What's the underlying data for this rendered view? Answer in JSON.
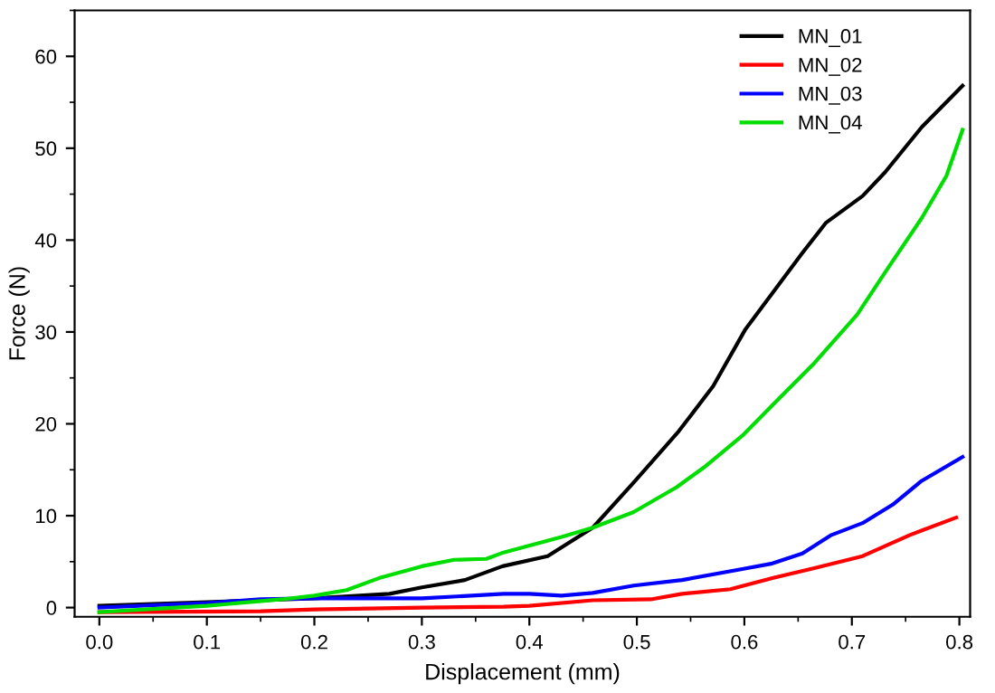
{
  "chart_data": {
    "type": "line",
    "xlabel": "Displacement (mm)",
    "ylabel": "Force (N)",
    "xlim": [
      -0.023,
      0.81
    ],
    "ylim": [
      -1,
      65
    ],
    "xticks": [
      {
        "value": 0.0,
        "label": "0.0"
      },
      0.1,
      0.2,
      0.3,
      0.4,
      0.5,
      0.6,
      0.7,
      0.8
    ],
    "yticks": [
      0,
      10,
      20,
      30,
      40,
      50,
      60
    ],
    "grid": false,
    "legend": "top right",
    "marker": "none",
    "line_style": "solid",
    "series": [
      {
        "name": "MN_01",
        "color": "#000000",
        "x": [
          0.0,
          0.1,
          0.15,
          0.2,
          0.27,
          0.3,
          0.34,
          0.375,
          0.417,
          0.459,
          0.497,
          0.539,
          0.571,
          0.601,
          0.654,
          0.676,
          0.71,
          0.731,
          0.765,
          0.803
        ],
        "values": [
          0.2,
          0.6,
          0.8,
          1.0,
          1.5,
          2.2,
          3.0,
          4.5,
          5.6,
          8.7,
          13.6,
          19.2,
          24.1,
          30.3,
          38.6,
          41.9,
          44.8,
          47.4,
          52.3,
          56.8
        ]
      },
      {
        "name": "MN_02",
        "color": "#ff0000",
        "x": [
          0.0,
          0.15,
          0.2,
          0.3,
          0.376,
          0.4,
          0.459,
          0.513,
          0.542,
          0.587,
          0.626,
          0.665,
          0.71,
          0.754,
          0.797
        ],
        "values": [
          -0.5,
          -0.4,
          -0.2,
          0.0,
          0.1,
          0.2,
          0.8,
          0.9,
          1.5,
          2.0,
          3.2,
          4.3,
          5.6,
          7.9,
          9.8
        ]
      },
      {
        "name": "MN_03",
        "color": "#0000ff",
        "x": [
          0.0,
          0.1,
          0.15,
          0.2,
          0.3,
          0.376,
          0.4,
          0.43,
          0.459,
          0.497,
          0.542,
          0.598,
          0.626,
          0.654,
          0.681,
          0.71,
          0.738,
          0.765,
          0.803
        ],
        "values": [
          0.0,
          0.5,
          0.9,
          1.0,
          1.0,
          1.5,
          1.5,
          1.3,
          1.6,
          2.4,
          3.0,
          4.2,
          4.8,
          5.9,
          7.9,
          9.2,
          11.2,
          13.8,
          16.4
        ]
      },
      {
        "name": "MN_04",
        "color": "#00dd00",
        "x": [
          0.0,
          0.1,
          0.17,
          0.2,
          0.23,
          0.26,
          0.3,
          0.33,
          0.36,
          0.376,
          0.43,
          0.459,
          0.497,
          0.537,
          0.564,
          0.598,
          0.631,
          0.665,
          0.705,
          0.731,
          0.765,
          0.788,
          0.803
        ],
        "values": [
          -0.5,
          0.2,
          0.9,
          1.3,
          1.9,
          3.2,
          4.5,
          5.2,
          5.3,
          6.0,
          7.7,
          8.7,
          10.4,
          13.1,
          15.4,
          18.7,
          22.6,
          26.6,
          31.9,
          36.5,
          42.4,
          47.0,
          52.0
        ]
      }
    ]
  }
}
